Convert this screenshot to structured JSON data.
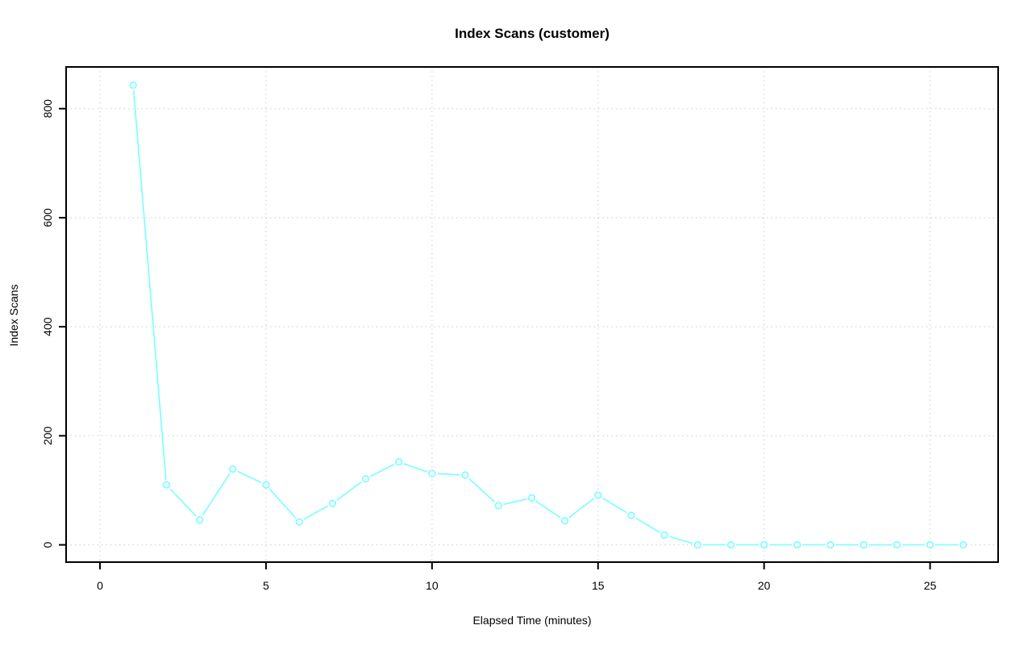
{
  "title": "Index Scans (customer)",
  "chart_data": {
    "type": "line",
    "title": "Index Scans (customer)",
    "xlabel": "Elapsed Time (minutes)",
    "ylabel": "Index Scans",
    "series": [
      {
        "name": "index scans",
        "x": [
          1,
          2,
          3,
          4,
          5,
          6,
          7,
          8,
          9,
          10,
          11,
          12,
          13,
          14,
          15,
          16,
          17,
          18,
          19,
          20,
          21,
          22,
          23,
          24,
          25,
          26
        ],
        "y": [
          843,
          110,
          46,
          139,
          110,
          42,
          76,
          121,
          152,
          131,
          128,
          72,
          86,
          44,
          91,
          54,
          18,
          0,
          0,
          0,
          0,
          0,
          0,
          0,
          0,
          0
        ]
      }
    ],
    "xticks": [
      0,
      5,
      10,
      15,
      20,
      25
    ],
    "yticks": [
      0,
      200,
      400,
      600,
      800
    ],
    "xlim": [
      -1.02,
      27.05
    ],
    "ylim": [
      -31.7,
      876.5
    ],
    "grid": true,
    "grid_style": "dotted",
    "legend": "none",
    "marker": "open-circle",
    "line_type": "both-points-and-segments",
    "colors": {
      "series": "#7DFFFF",
      "grid": "#d2d2d2",
      "axis": "#000000",
      "background": "#ffffff"
    }
  }
}
